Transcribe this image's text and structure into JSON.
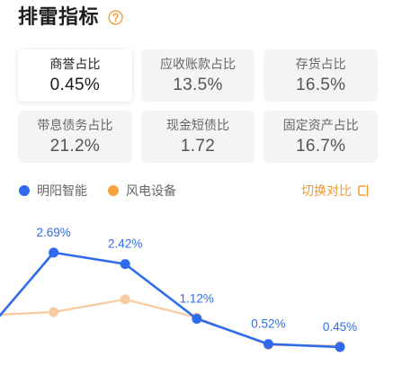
{
  "title": "排雷指标",
  "icons": {
    "help": "question-circle-icon",
    "switch": "switch-compare-icon"
  },
  "colors": {
    "accent": "#f19a35",
    "primary": "#2f6bec"
  },
  "metrics": [
    {
      "label": "商誉占比",
      "value": "0.45%",
      "selected": true
    },
    {
      "label": "应收账款占比",
      "value": "13.5%",
      "selected": false
    },
    {
      "label": "存货占比",
      "value": "16.5%",
      "selected": false
    },
    {
      "label": "带息债务占比",
      "value": "21.2%",
      "selected": false
    },
    {
      "label": "现金短债比",
      "value": "1.72",
      "selected": false
    },
    {
      "label": "固定资产占比",
      "value": "16.7%",
      "selected": false
    }
  ],
  "switch_compare": {
    "label": "切换对比"
  },
  "chart_data": {
    "type": "line",
    "legend_position": "top-left",
    "grid": false,
    "series": [
      {
        "name": "明阳智能",
        "color": "#2f6bec",
        "values": [
          0.7,
          2.69,
          2.42,
          1.12,
          0.52,
          0.45
        ],
        "data_labels": [
          "",
          "2.69%",
          "2.42%",
          "1.12%",
          "0.52%",
          "0.45%"
        ]
      },
      {
        "name": "风电设备",
        "color": "#f5a33c",
        "line_color": "#f7cba0",
        "values": [
          1.2,
          1.28,
          1.58,
          1.15,
          0.5,
          0.48
        ]
      }
    ]
  }
}
